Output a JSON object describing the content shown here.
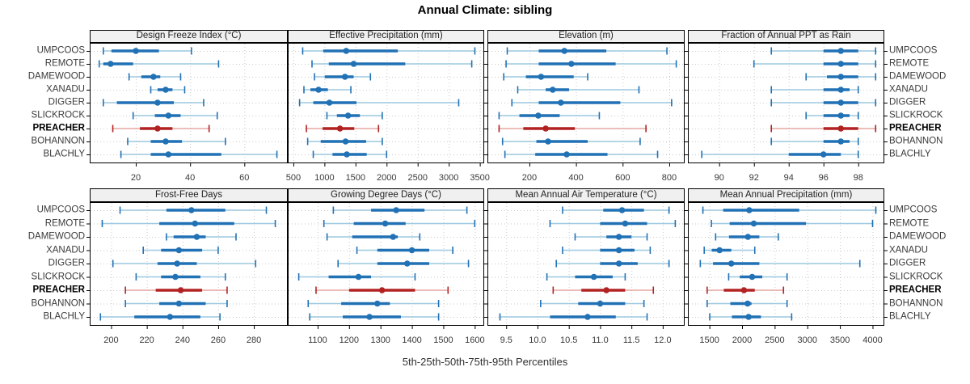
{
  "title": "Annual Climate: sibling",
  "caption": "5th-25th-50th-75th-95th Percentiles",
  "colors": {
    "normal": "#2171b5",
    "normal_light": "#9ecae1",
    "highlight": "#b22222",
    "highlight_light": "#e8a9a4",
    "strip_bg": "#f0f0f0",
    "grid": "#c9c9c9",
    "panel_border": "#000000",
    "tick": "#000000"
  },
  "stations": [
    "UMPCOOS",
    "REMOTE",
    "DAMEWOOD",
    "XANADU",
    "DIGGER",
    "SLICKROCK",
    "PREACHER",
    "BOHANNON",
    "BLACHLY"
  ],
  "highlight_station": "PREACHER",
  "chart_data": {
    "type": "dotplot-intervals",
    "title": "Annual Climate: sibling",
    "subtitle": "5th-25th-50th-75th-95th Percentiles",
    "percentiles": [
      5,
      25,
      50,
      75,
      95
    ],
    "grid": "dotted",
    "layout": "2 rows x 4 columns, station labels on left and right, x-axis below each row",
    "panels": [
      {
        "title": "Design Freeze Index (°C)",
        "row": 0,
        "col": 0,
        "xlim": [
          3,
          76
        ],
        "tick_values": [
          20,
          40,
          60
        ],
        "tick_labels": [
          "20",
          "40",
          "60"
        ],
        "percentile_values_by_station": [
          [
            8,
            11,
            20,
            28.5,
            40.5
          ],
          [
            6.5,
            8,
            10.7,
            19,
            50.5
          ],
          [
            17.5,
            22,
            26.5,
            29,
            36.5
          ],
          [
            25.5,
            28,
            31,
            33.5,
            38
          ],
          [
            8,
            13,
            28,
            34,
            45
          ],
          [
            19,
            27,
            32,
            36.5,
            50
          ],
          [
            11.5,
            21.5,
            28,
            33.5,
            47
          ],
          [
            17,
            25.5,
            31,
            37,
            53
          ],
          [
            14.5,
            25.5,
            32,
            51.5,
            72
          ]
        ]
      },
      {
        "title": "Effective Precipitation (mm)",
        "row": 0,
        "col": 1,
        "xlim": [
          410,
          3570
        ],
        "tick_values": [
          500,
          1000,
          1500,
          2000,
          2500,
          3000,
          3500
        ],
        "tick_labels": [
          "500",
          "1000",
          "1500",
          "2000",
          "2500",
          "3000",
          "3500"
        ],
        "percentile_values_by_station": [
          [
            650,
            980,
            1350,
            2180,
            3420
          ],
          [
            800,
            1070,
            1470,
            2300,
            3370
          ],
          [
            840,
            1005,
            1330,
            1470,
            1740
          ],
          [
            670,
            775,
            905,
            1055,
            1425
          ],
          [
            600,
            820,
            1080,
            1515,
            3160
          ],
          [
            1040,
            1200,
            1380,
            1570,
            1930
          ],
          [
            710,
            970,
            1250,
            1480,
            1870
          ],
          [
            730,
            940,
            1340,
            1670,
            1930
          ],
          [
            820,
            1130,
            1360,
            1680,
            2000
          ]
        ]
      },
      {
        "title": "Elevation (m)",
        "row": 0,
        "col": 2,
        "xlim": [
          20,
          866
        ],
        "tick_values": [
          200,
          400,
          600,
          800
        ],
        "tick_labels": [
          "200",
          "400",
          "600",
          "800"
        ],
        "percentile_values_by_station": [
          [
            105,
            240,
            350,
            530,
            790
          ],
          [
            100,
            240,
            380,
            570,
            830
          ],
          [
            90,
            185,
            250,
            390,
            450
          ],
          [
            150,
            270,
            300,
            370,
            670
          ],
          [
            125,
            240,
            335,
            590,
            810
          ],
          [
            70,
            157,
            238,
            330,
            500
          ],
          [
            70,
            174,
            270,
            395,
            700
          ],
          [
            85,
            230,
            280,
            450,
            675
          ],
          [
            95,
            225,
            360,
            535,
            750
          ]
        ]
      },
      {
        "title": "Fraction of Annual PPT as Rain",
        "row": 0,
        "col": 3,
        "xlim": [
          88.2,
          99.5
        ],
        "tick_values": [
          90,
          92,
          94,
          96,
          98
        ],
        "tick_labels": [
          "90",
          "92",
          "94",
          "96",
          "98"
        ],
        "percentile_values_by_station": [
          [
            93,
            96,
            97,
            98,
            99
          ],
          [
            92,
            96,
            97,
            98,
            99
          ],
          [
            95,
            96.2,
            97,
            98,
            99
          ],
          [
            93,
            96,
            97,
            97.5,
            98
          ],
          [
            93,
            96,
            97,
            98,
            99
          ],
          [
            95,
            96,
            97,
            97.5,
            98
          ],
          [
            93,
            96,
            97,
            98,
            99
          ],
          [
            93,
            96,
            97,
            97.5,
            98
          ],
          [
            89,
            94,
            96,
            97,
            98
          ]
        ]
      },
      {
        "title": "Frost-Free Days",
        "row": 1,
        "col": 0,
        "xlim": [
          188,
          299
        ],
        "tick_values": [
          200,
          220,
          240,
          260,
          280
        ],
        "tick_labels": [
          "200",
          "220",
          "240",
          "260",
          "280"
        ],
        "percentile_values_by_station": [
          [
            205,
            231,
            245,
            264,
            287
          ],
          [
            195,
            227,
            247,
            269,
            292
          ],
          [
            231,
            235,
            248,
            253,
            270
          ],
          [
            218,
            228,
            238,
            251,
            260
          ],
          [
            201,
            226,
            237,
            248,
            281
          ],
          [
            214,
            228,
            236,
            250,
            264
          ],
          [
            208,
            225,
            239,
            251,
            265
          ],
          [
            208,
            227,
            238,
            253,
            265
          ],
          [
            194,
            213,
            233,
            250,
            261
          ]
        ]
      },
      {
        "title": "Growing Degree Days (°C)",
        "row": 1,
        "col": 1,
        "xlim": [
          1005,
          1630
        ],
        "tick_values": [
          1100,
          1200,
          1300,
          1400,
          1500,
          1600
        ],
        "tick_labels": [
          "1100",
          "1200",
          "1300",
          "1400",
          "1500",
          "1600"
        ],
        "percentile_values_by_station": [
          [
            1150,
            1270,
            1350,
            1440,
            1575
          ],
          [
            1120,
            1215,
            1315,
            1380,
            1600
          ],
          [
            1130,
            1210,
            1340,
            1355,
            1425
          ],
          [
            1225,
            1290,
            1400,
            1455,
            1530
          ],
          [
            1165,
            1290,
            1385,
            1455,
            1580
          ],
          [
            1040,
            1135,
            1230,
            1270,
            1410
          ],
          [
            1095,
            1200,
            1305,
            1410,
            1515
          ],
          [
            1070,
            1175,
            1290,
            1330,
            1485
          ],
          [
            1075,
            1180,
            1265,
            1365,
            1485
          ]
        ]
      },
      {
        "title": "Mean Annual Air Temperature (°C)",
        "row": 1,
        "col": 2,
        "xlim": [
          9.2,
          12.35
        ],
        "tick_values": [
          9.5,
          10.0,
          10.5,
          11.0,
          11.5,
          12.0
        ],
        "tick_labels": [
          "9.5",
          "10.0",
          "10.5",
          "11.0",
          "11.5",
          "12.0"
        ],
        "percentile_values_by_station": [
          [
            10.4,
            11.05,
            11.35,
            11.7,
            12.1
          ],
          [
            10.2,
            11.0,
            11.4,
            11.75,
            12.2
          ],
          [
            10.6,
            11.1,
            11.3,
            11.5,
            11.75
          ],
          [
            10.4,
            11.0,
            11.3,
            11.55,
            11.8
          ],
          [
            10.3,
            11.0,
            11.3,
            11.6,
            12.1
          ],
          [
            10.15,
            10.6,
            10.9,
            11.2,
            11.4
          ],
          [
            10.25,
            10.7,
            11.1,
            11.4,
            11.85
          ],
          [
            10.05,
            10.65,
            11.0,
            11.4,
            11.7
          ],
          [
            9.4,
            10.2,
            10.8,
            11.25,
            11.75
          ]
        ]
      },
      {
        "title": "Mean Annual Precipitation (mm)",
        "row": 1,
        "col": 3,
        "xlim": [
          1170,
          4180
        ],
        "tick_values": [
          1500,
          2000,
          2500,
          3000,
          3500,
          4000
        ],
        "tick_labels": [
          "1500",
          "2000",
          "2500",
          "3000",
          "3500",
          "4000"
        ],
        "percentile_values_by_station": [
          [
            1400,
            1710,
            2110,
            2875,
            4050
          ],
          [
            1530,
            1810,
            2180,
            2980,
            4000
          ],
          [
            1595,
            1800,
            2090,
            2265,
            2555
          ],
          [
            1420,
            1535,
            1655,
            1835,
            2195
          ],
          [
            1360,
            1555,
            1835,
            2265,
            3805
          ],
          [
            1795,
            1965,
            2155,
            2310,
            2690
          ],
          [
            1465,
            1720,
            2030,
            2195,
            2635
          ],
          [
            1465,
            1820,
            2085,
            2145,
            2690
          ],
          [
            1505,
            1845,
            2100,
            2290,
            2760
          ]
        ]
      }
    ]
  }
}
